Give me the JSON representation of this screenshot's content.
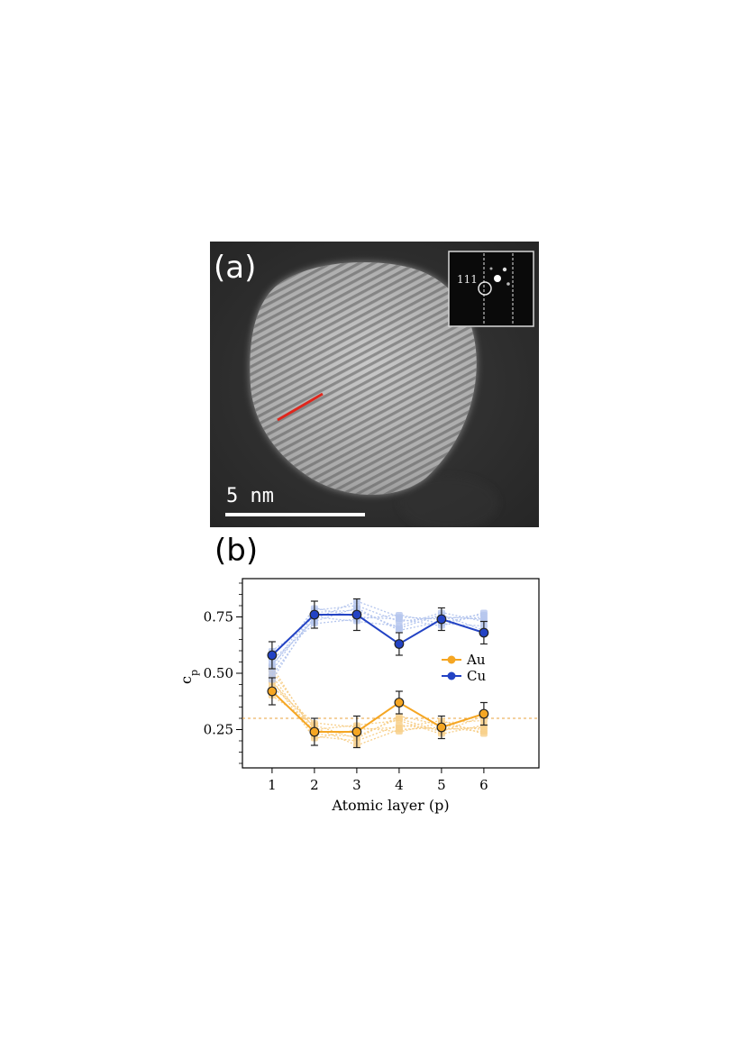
{
  "panel_a": {
    "label": "(a)",
    "scale_bar_label": "5 nm",
    "fft_inset_label": "111",
    "line_color": "#e0261c"
  },
  "panel_b": {
    "label": "(b)"
  },
  "chart_data": {
    "type": "line",
    "x": [
      1,
      2,
      3,
      4,
      5,
      6
    ],
    "xlabel": "Atomic layer (p)",
    "ylabel": "c",
    "ylabel_subscript": "p",
    "xlim": [
      0.3,
      7.3
    ],
    "ylim": [
      0.08,
      0.92
    ],
    "x_ticks": [
      1,
      2,
      3,
      4,
      5,
      6
    ],
    "y_ticks": [
      0.25,
      0.5,
      0.75
    ],
    "y_tick_labels": [
      "0.25",
      "0.50",
      "0.75"
    ],
    "reference_line": {
      "y": 0.3,
      "style": "dashed",
      "color": "#e8a33d"
    },
    "legend": {
      "position": "center-right"
    },
    "series": [
      {
        "name": "Au",
        "color": "#f5a623",
        "values": [
          0.42,
          0.24,
          0.24,
          0.37,
          0.26,
          0.32
        ],
        "errors": [
          0.06,
          0.06,
          0.07,
          0.05,
          0.05,
          0.05
        ],
        "spread_lines": [
          [
            0.53,
            0.23,
            0.22,
            0.3,
            0.24,
            0.31
          ],
          [
            0.49,
            0.22,
            0.2,
            0.27,
            0.25,
            0.26
          ],
          [
            0.46,
            0.26,
            0.18,
            0.25,
            0.26,
            0.24
          ],
          [
            0.44,
            0.28,
            0.26,
            0.24,
            0.28,
            0.29
          ],
          [
            0.51,
            0.25,
            0.27,
            0.29,
            0.23,
            0.27
          ],
          [
            0.4,
            0.27,
            0.21,
            0.31,
            0.27,
            0.25
          ],
          [
            0.47,
            0.21,
            0.25,
            0.26,
            0.29,
            0.23
          ]
        ]
      },
      {
        "name": "Cu",
        "color": "#2343c4",
        "values": [
          0.58,
          0.76,
          0.76,
          0.63,
          0.74,
          0.68
        ],
        "errors": [
          0.06,
          0.06,
          0.07,
          0.05,
          0.05,
          0.05
        ],
        "spread_lines": [
          [
            0.47,
            0.77,
            0.78,
            0.7,
            0.76,
            0.69
          ],
          [
            0.51,
            0.78,
            0.8,
            0.73,
            0.75,
            0.74
          ],
          [
            0.54,
            0.74,
            0.82,
            0.75,
            0.74,
            0.76
          ],
          [
            0.56,
            0.72,
            0.74,
            0.76,
            0.72,
            0.71
          ],
          [
            0.49,
            0.75,
            0.73,
            0.71,
            0.77,
            0.73
          ],
          [
            0.6,
            0.73,
            0.79,
            0.69,
            0.73,
            0.75
          ],
          [
            0.53,
            0.79,
            0.75,
            0.74,
            0.71,
            0.77
          ]
        ]
      }
    ]
  }
}
